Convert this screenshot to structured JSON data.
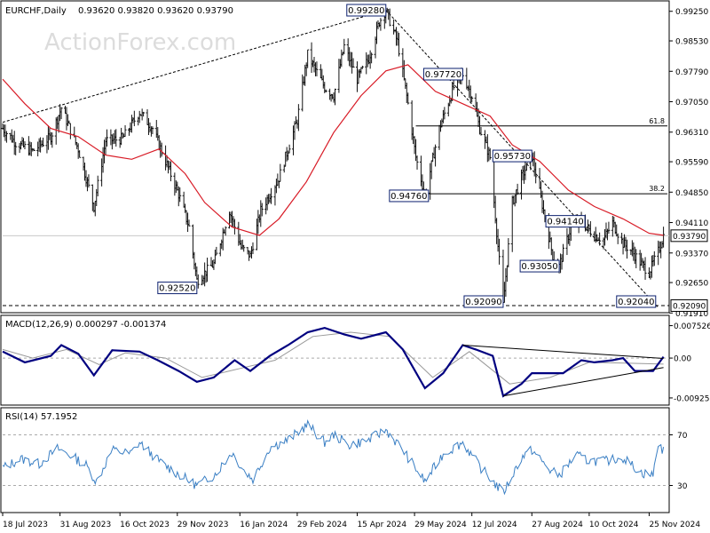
{
  "watermark": "ActionForex.com",
  "header": {
    "symbol_label": "EURCHF,Daily",
    "ohlc_text": "0.93620 0.93820 0.93620 0.93790"
  },
  "chart_data": [
    {
      "type": "candlestick",
      "title": "EURCHF,Daily  0.93620 0.93820 0.93620 0.93790",
      "series": [
        {
          "name": "EURCHF daily bars",
          "style": "OHLC bars",
          "color": "#111111"
        },
        {
          "name": "moving average",
          "color": "#d81b26"
        }
      ],
      "yaxis": {
        "position": "right",
        "ylim": [
          0.9196,
          0.9946
        ],
        "ticks": [
          "0.99250",
          "0.98530",
          "0.97790",
          "0.97050",
          "0.96310",
          "0.95590",
          "0.94850",
          "0.94110",
          "0.93370",
          "0.92650",
          "0.91910"
        ],
        "current_price_tag": "0.93790",
        "support_tag": "0.92090"
      },
      "price_path": [
        [
          "2023-07-18",
          0.964
        ],
        [
          "2023-07-28",
          0.9605
        ],
        [
          "2023-08-10",
          0.9585
        ],
        [
          "2023-08-24",
          0.962
        ],
        [
          "2023-09-01",
          0.969
        ],
        [
          "2023-09-14",
          0.959
        ],
        [
          "2023-09-26",
          0.945
        ],
        [
          "2023-10-05",
          0.961
        ],
        [
          "2023-10-18",
          0.9615
        ],
        [
          "2023-10-31",
          0.968
        ],
        [
          "2023-11-10",
          0.964
        ],
        [
          "2023-11-20",
          0.956
        ],
        [
          "2023-11-30",
          0.948
        ],
        [
          "2023-12-08",
          0.94
        ],
        [
          "2023-12-14",
          0.927
        ],
        [
          "2023-12-27",
          0.931
        ],
        [
          "2024-01-08",
          0.944
        ],
        [
          "2024-01-17",
          0.935
        ],
        [
          "2024-01-24",
          0.933
        ],
        [
          "2024-02-01",
          0.944
        ],
        [
          "2024-02-15",
          0.952
        ],
        [
          "2024-02-29",
          0.966
        ],
        [
          "2024-03-08",
          0.982
        ],
        [
          "2024-03-21",
          0.974
        ],
        [
          "2024-03-28",
          0.972
        ],
        [
          "2024-04-05",
          0.984
        ],
        [
          "2024-04-15",
          0.976
        ],
        [
          "2024-04-24",
          0.981
        ],
        [
          "2024-05-02",
          0.99
        ],
        [
          "2024-05-07",
          0.9928
        ],
        [
          "2024-05-16",
          0.985
        ],
        [
          "2024-05-24",
          0.97
        ],
        [
          "2024-05-30",
          0.957
        ],
        [
          "2024-06-06",
          0.9476
        ],
        [
          "2024-06-17",
          0.964
        ],
        [
          "2024-06-28",
          0.974
        ],
        [
          "2024-07-05",
          0.9772
        ],
        [
          "2024-07-12",
          0.972
        ],
        [
          "2024-07-18",
          0.964
        ],
        [
          "2024-07-26",
          0.957
        ],
        [
          "2024-08-05",
          0.9209
        ],
        [
          "2024-08-12",
          0.946
        ],
        [
          "2024-08-19",
          0.952
        ],
        [
          "2024-08-27",
          0.9573
        ],
        [
          "2024-09-05",
          0.944
        ],
        [
          "2024-09-12",
          0.933
        ],
        [
          "2024-09-17",
          0.9305
        ],
        [
          "2024-09-26",
          0.94
        ],
        [
          "2024-10-04",
          0.9414
        ],
        [
          "2024-10-14",
          0.938
        ],
        [
          "2024-10-21",
          0.937
        ],
        [
          "2024-10-28",
          0.941
        ],
        [
          "2024-11-05",
          0.936
        ],
        [
          "2024-11-12",
          0.934
        ],
        [
          "2024-11-19",
          0.931
        ],
        [
          "2024-11-25",
          0.929
        ],
        [
          "2024-12-02",
          0.934
        ],
        [
          "2024-12-06",
          0.9379
        ]
      ],
      "ma_path": [
        [
          "2023-07-18",
          0.976
        ],
        [
          "2023-08-04",
          0.97
        ],
        [
          "2023-08-24",
          0.964
        ],
        [
          "2023-09-14",
          0.962
        ],
        [
          "2023-10-05",
          0.9575
        ],
        [
          "2023-10-25",
          0.9565
        ],
        [
          "2023-11-15",
          0.959
        ],
        [
          "2023-12-05",
          0.953
        ],
        [
          "2023-12-20",
          0.946
        ],
        [
          "2024-01-10",
          0.94
        ],
        [
          "2024-01-31",
          0.938
        ],
        [
          "2024-02-15",
          0.942
        ],
        [
          "2024-03-07",
          0.951
        ],
        [
          "2024-03-28",
          0.963
        ],
        [
          "2024-04-18",
          0.972
        ],
        [
          "2024-05-07",
          0.978
        ],
        [
          "2024-05-24",
          0.9795
        ],
        [
          "2024-06-14",
          0.973
        ],
        [
          "2024-07-05",
          0.97
        ],
        [
          "2024-07-26",
          0.967
        ],
        [
          "2024-08-12",
          0.96
        ],
        [
          "2024-09-02",
          0.956
        ],
        [
          "2024-09-24",
          0.949
        ],
        [
          "2024-10-14",
          0.945
        ],
        [
          "2024-11-05",
          0.942
        ],
        [
          "2024-11-25",
          0.9385
        ],
        [
          "2024-12-06",
          0.938
        ]
      ],
      "labels": [
        {
          "text": "0.99280",
          "date": "2024-05-07",
          "price": 0.9928,
          "anchor": "left"
        },
        {
          "text": "0.97720",
          "date": "2024-07-05",
          "price": 0.9772,
          "anchor": "left"
        },
        {
          "text": "0.95730",
          "date": "2024-08-27",
          "price": 0.9573,
          "anchor": "left"
        },
        {
          "text": "0.94760",
          "date": "2024-06-06",
          "price": 0.9476,
          "anchor": "right"
        },
        {
          "text": "0.94140",
          "date": "2024-10-04",
          "price": 0.9414,
          "anchor": "right"
        },
        {
          "text": "0.93050",
          "date": "2024-09-17",
          "price": 0.9305,
          "anchor": "left"
        },
        {
          "text": "0.92520",
          "date": "2023-12-14",
          "price": 0.9252,
          "anchor": "left"
        },
        {
          "text": "0.92090",
          "date": "2024-08-05",
          "price": 0.9209,
          "anchor": "left"
        },
        {
          "text": "0.92040",
          "date": "2024-11-30",
          "price": 0.9204,
          "anchor": "left"
        }
      ],
      "levels": [
        {
          "label": "61.8",
          "price": 0.9646,
          "from": "2024-05-30"
        },
        {
          "label": "38.2",
          "price": 0.9481,
          "from": "2024-06-06"
        }
      ],
      "trendlines": [
        {
          "style": "dashed",
          "from": [
            "2023-07-18",
            0.9655
          ],
          "to": [
            "2024-05-07",
            0.9928
          ]
        },
        {
          "style": "dashed",
          "from": [
            "2024-05-07",
            0.9928
          ],
          "to": [
            "2024-12-02",
            0.9204
          ]
        }
      ]
    },
    {
      "type": "line",
      "title": "MACD(12,26,9) 0.000297 -0.001374",
      "series": [
        {
          "name": "MACD",
          "color": "#000080"
        },
        {
          "name": "Signal",
          "color": "#999999"
        }
      ],
      "yaxis": {
        "ticks": [
          "0.007526",
          "0.00",
          "-0.009252"
        ],
        "ylim": [
          -0.0105,
          0.0095
        ]
      },
      "macd_path": [
        [
          "2023-07-18",
          0.0015
        ],
        [
          "2023-08-04",
          -0.001
        ],
        [
          "2023-08-24",
          0.0005
        ],
        [
          "2023-09-01",
          0.003
        ],
        [
          "2023-09-14",
          0.001
        ],
        [
          "2023-09-26",
          -0.004
        ],
        [
          "2023-10-10",
          0.0018
        ],
        [
          "2023-10-31",
          0.0015
        ],
        [
          "2023-11-14",
          -0.0005
        ],
        [
          "2023-11-30",
          -0.003
        ],
        [
          "2023-12-14",
          -0.0055
        ],
        [
          "2023-12-27",
          -0.0045
        ],
        [
          "2024-01-12",
          -0.0005
        ],
        [
          "2024-01-24",
          -0.003
        ],
        [
          "2024-02-08",
          0.0005
        ],
        [
          "2024-02-22",
          0.003
        ],
        [
          "2024-03-08",
          0.006
        ],
        [
          "2024-03-21",
          0.007
        ],
        [
          "2024-04-05",
          0.0055
        ],
        [
          "2024-04-18",
          0.0045
        ],
        [
          "2024-05-07",
          0.006
        ],
        [
          "2024-05-20",
          0.002
        ],
        [
          "2024-06-06",
          -0.007
        ],
        [
          "2024-06-20",
          -0.0035
        ],
        [
          "2024-07-05",
          0.003
        ],
        [
          "2024-07-15",
          0.002
        ],
        [
          "2024-07-28",
          0.0005
        ],
        [
          "2024-08-05",
          -0.0088
        ],
        [
          "2024-08-19",
          -0.006
        ],
        [
          "2024-08-27",
          -0.0035
        ],
        [
          "2024-09-10",
          -0.0035
        ],
        [
          "2024-09-20",
          -0.0035
        ],
        [
          "2024-10-04",
          -0.0005
        ],
        [
          "2024-10-14",
          -0.001
        ],
        [
          "2024-10-28",
          -0.0005
        ],
        [
          "2024-11-05",
          0.0
        ],
        [
          "2024-11-14",
          -0.003
        ],
        [
          "2024-11-28",
          -0.003
        ],
        [
          "2024-12-06",
          0.0003
        ]
      ],
      "signal_path": [
        [
          "2023-07-18",
          0.002
        ],
        [
          "2023-08-10",
          0.0
        ],
        [
          "2023-09-05",
          0.002
        ],
        [
          "2023-09-30",
          -0.0015
        ],
        [
          "2023-10-20",
          0.0012
        ],
        [
          "2023-11-20",
          0.0
        ],
        [
          "2023-12-18",
          -0.0045
        ],
        [
          "2024-01-15",
          -0.0025
        ],
        [
          "2024-02-12",
          -0.0005
        ],
        [
          "2024-03-12",
          0.005
        ],
        [
          "2024-04-10",
          0.006
        ],
        [
          "2024-05-10",
          0.005
        ],
        [
          "2024-06-12",
          -0.0045
        ],
        [
          "2024-07-10",
          0.0015
        ],
        [
          "2024-08-10",
          -0.006
        ],
        [
          "2024-09-10",
          -0.0045
        ],
        [
          "2024-10-10",
          -0.001
        ],
        [
          "2024-11-10",
          -0.0012
        ],
        [
          "2024-12-06",
          -0.0014
        ]
      ],
      "trendlines": [
        {
          "from": [
            "2024-07-05",
            0.003
          ],
          "to": [
            "2024-12-06",
            -0.0001
          ]
        },
        {
          "from": [
            "2024-08-05",
            -0.0088
          ],
          "to": [
            "2024-12-06",
            -0.0022
          ]
        }
      ]
    },
    {
      "type": "line",
      "title": "RSI(14) 57.1952",
      "series": [
        {
          "name": "RSI",
          "color": "#3a7fc4"
        }
      ],
      "yaxis": {
        "ticks": [
          "70",
          "30"
        ],
        "ylim": [
          10,
          90
        ]
      },
      "rsi_path": [
        [
          "2023-07-18",
          44
        ],
        [
          "2023-08-01",
          51
        ],
        [
          "2023-08-15",
          47
        ],
        [
          "2023-08-29",
          59
        ],
        [
          "2023-09-08",
          54
        ],
        [
          "2023-09-20",
          46
        ],
        [
          "2023-09-28",
          33
        ],
        [
          "2023-10-10",
          58
        ],
        [
          "2023-10-24",
          55
        ],
        [
          "2023-10-31",
          64
        ],
        [
          "2023-11-14",
          50
        ],
        [
          "2023-11-28",
          40
        ],
        [
          "2023-12-14",
          30
        ],
        [
          "2023-12-27",
          38
        ],
        [
          "2024-01-10",
          56
        ],
        [
          "2024-01-19",
          42
        ],
        [
          "2024-01-26",
          35
        ],
        [
          "2024-02-08",
          60
        ],
        [
          "2024-02-22",
          66
        ],
        [
          "2024-03-08",
          78
        ],
        [
          "2024-03-21",
          64
        ],
        [
          "2024-03-28",
          70
        ],
        [
          "2024-04-09",
          62
        ],
        [
          "2024-04-24",
          66
        ],
        [
          "2024-05-07",
          74
        ],
        [
          "2024-05-20",
          58
        ],
        [
          "2024-06-06",
          33
        ],
        [
          "2024-06-20",
          55
        ],
        [
          "2024-07-05",
          64
        ],
        [
          "2024-07-18",
          45
        ],
        [
          "2024-08-05",
          24
        ],
        [
          "2024-08-19",
          52
        ],
        [
          "2024-08-27",
          58
        ],
        [
          "2024-09-10",
          42
        ],
        [
          "2024-09-17",
          38
        ],
        [
          "2024-09-30",
          54
        ],
        [
          "2024-10-08",
          50
        ],
        [
          "2024-10-21",
          49
        ],
        [
          "2024-11-05",
          52
        ],
        [
          "2024-11-19",
          40
        ],
        [
          "2024-11-28",
          38
        ],
        [
          "2024-12-02",
          64
        ],
        [
          "2024-12-06",
          57
        ]
      ]
    }
  ],
  "xaxis": {
    "start_date": "2023-07-18",
    "end_date": "2024-12-09",
    "ticks": [
      {
        "label": "18 Jul 2023",
        "date": "2023-07-18"
      },
      {
        "label": "31 Aug 2023",
        "date": "2023-08-31"
      },
      {
        "label": "16 Oct 2023",
        "date": "2023-10-16"
      },
      {
        "label": "29 Nov 2023",
        "date": "2023-11-29"
      },
      {
        "label": "16 Jan 2024",
        "date": "2024-01-16"
      },
      {
        "label": "29 Feb 2024",
        "date": "2024-02-29"
      },
      {
        "label": "15 Apr 2024",
        "date": "2024-04-15"
      },
      {
        "label": "29 May 2024",
        "date": "2024-05-29"
      },
      {
        "label": "12 Jul 2024",
        "date": "2024-07-12"
      },
      {
        "label": "27 Aug 2024",
        "date": "2024-08-27"
      },
      {
        "label": "10 Oct 2024",
        "date": "2024-10-10"
      },
      {
        "label": "25 Nov 2024",
        "date": "2024-11-25"
      }
    ]
  },
  "colors": {
    "price": "#111111",
    "ma": "#d81b26",
    "macd": "#000080",
    "signal": "#999999",
    "rsi": "#3a7fc4",
    "label_border": "#0b1f6e",
    "watermark": "#dcdcdc"
  }
}
